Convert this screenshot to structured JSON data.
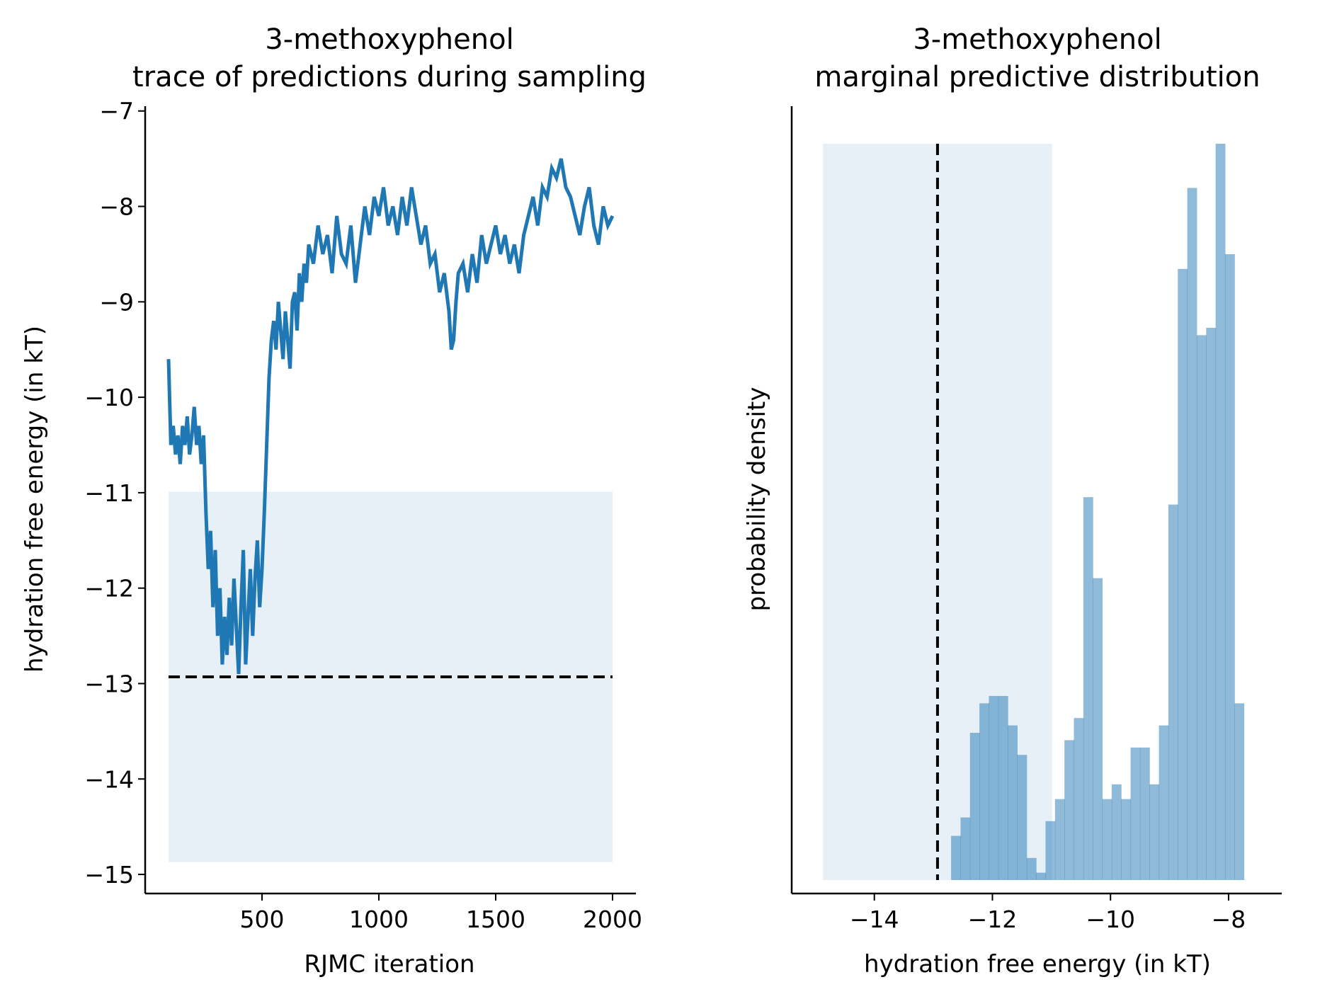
{
  "chart_data": [
    {
      "type": "line",
      "title_line1": "3-methoxyphenol",
      "title_line2": "trace of predictions during sampling",
      "xlabel": "RJMC iteration",
      "ylabel": "hydration free energy (in kT)",
      "xlim": [
        0,
        2100
      ],
      "ylim": [
        -15.2,
        -6.95
      ],
      "xticks": [
        500,
        1000,
        1500,
        2000
      ],
      "yticks": [
        -15,
        -14,
        -13,
        -12,
        -11,
        -10,
        -9,
        -8,
        -7
      ],
      "band": {
        "x0": 100,
        "x1": 2000,
        "y0": -14.87,
        "y1": -10.99
      },
      "reference_line": {
        "y": -12.93,
        "x0": 100,
        "x1": 2000
      },
      "series": [
        {
          "x": [
            100,
            110,
            120,
            130,
            140,
            150,
            160,
            170,
            180,
            190,
            200,
            210,
            220,
            230,
            240,
            250,
            260,
            270,
            280,
            290,
            300,
            310,
            320,
            330,
            340,
            350,
            360,
            370,
            380,
            390,
            400,
            410,
            420,
            430,
            440,
            450,
            460,
            470,
            480,
            490,
            500,
            510,
            520,
            530,
            540,
            550,
            560,
            570,
            580,
            590,
            600,
            610,
            620,
            630,
            640,
            650,
            660,
            670,
            680,
            690,
            700,
            720,
            740,
            760,
            780,
            800,
            820,
            840,
            860,
            880,
            900,
            920,
            940,
            960,
            980,
            1000,
            1020,
            1040,
            1060,
            1080,
            1100,
            1120,
            1140,
            1160,
            1180,
            1200,
            1220,
            1240,
            1260,
            1280,
            1300,
            1310,
            1320,
            1330,
            1340,
            1360,
            1380,
            1400,
            1420,
            1440,
            1460,
            1480,
            1500,
            1520,
            1540,
            1560,
            1580,
            1600,
            1620,
            1640,
            1660,
            1680,
            1700,
            1720,
            1740,
            1760,
            1780,
            1800,
            1820,
            1840,
            1860,
            1880,
            1900,
            1920,
            1940,
            1960,
            1980,
            2000
          ],
          "y": [
            -9.6,
            -10.5,
            -10.3,
            -10.6,
            -10.4,
            -10.7,
            -10.3,
            -10.5,
            -10.2,
            -10.6,
            -10.4,
            -10.1,
            -10.5,
            -10.3,
            -10.7,
            -10.4,
            -11.2,
            -11.8,
            -11.4,
            -12.2,
            -11.6,
            -12.5,
            -12.0,
            -12.8,
            -12.3,
            -12.7,
            -12.1,
            -12.6,
            -11.9,
            -12.4,
            -12.9,
            -12.2,
            -11.6,
            -12.8,
            -12.3,
            -11.8,
            -12.5,
            -11.9,
            -11.5,
            -12.2,
            -11.8,
            -11.2,
            -10.5,
            -9.8,
            -9.4,
            -9.2,
            -9.5,
            -9.0,
            -9.3,
            -9.6,
            -9.1,
            -9.4,
            -9.7,
            -9.0,
            -8.9,
            -9.3,
            -8.7,
            -9.0,
            -8.6,
            -8.8,
            -8.4,
            -8.6,
            -8.2,
            -8.5,
            -8.3,
            -8.7,
            -8.1,
            -8.5,
            -8.6,
            -8.2,
            -8.8,
            -8.4,
            -8.0,
            -8.3,
            -7.9,
            -8.1,
            -7.8,
            -8.2,
            -8.0,
            -8.3,
            -7.9,
            -8.2,
            -7.8,
            -8.1,
            -8.4,
            -8.2,
            -8.6,
            -8.5,
            -8.9,
            -8.7,
            -9.1,
            -9.5,
            -9.4,
            -9.0,
            -8.7,
            -8.6,
            -8.9,
            -8.5,
            -8.8,
            -8.3,
            -8.6,
            -8.4,
            -8.2,
            -8.5,
            -8.3,
            -8.6,
            -8.4,
            -8.7,
            -8.3,
            -8.1,
            -7.9,
            -8.2,
            -7.8,
            -7.9,
            -7.6,
            -7.7,
            -7.5,
            -7.8,
            -7.9,
            -8.1,
            -8.3,
            -8.0,
            -7.8,
            -8.2,
            -8.4,
            -8.0,
            -8.2,
            -8.1
          ]
        }
      ]
    },
    {
      "type": "bar",
      "title_line1": "3-methoxyphenol",
      "title_line2": "marginal predictive distribution",
      "xlabel": "hydration free energy (in kT)",
      "ylabel": "probability density",
      "xlim": [
        -15.4,
        -7.1
      ],
      "xticks": [
        -14,
        -12,
        -10,
        -8
      ],
      "band": {
        "x0": -14.87,
        "x1": -10.99
      },
      "reference_line": {
        "x": -12.93
      },
      "bin_edges": [
        -12.7,
        -12.54,
        -12.38,
        -12.22,
        -12.06,
        -11.9,
        -11.74,
        -11.58,
        -11.42,
        -11.26,
        -11.1,
        -10.94,
        -10.78,
        -10.62,
        -10.46,
        -10.3,
        -10.14,
        -9.98,
        -9.82,
        -9.66,
        -9.5,
        -9.34,
        -9.18,
        -9.02,
        -8.86,
        -8.7,
        -8.54,
        -8.38,
        -8.22,
        -8.06,
        -7.9,
        -7.74,
        -7.58
      ],
      "values": [
        0.06,
        0.085,
        0.2,
        0.24,
        0.25,
        0.25,
        0.21,
        0.17,
        0.03,
        0.01,
        0.08,
        0.11,
        0.19,
        0.22,
        0.52,
        0.41,
        0.11,
        0.13,
        0.11,
        0.18,
        0.18,
        0.13,
        0.21,
        0.51,
        0.83,
        0.94,
        0.74,
        0.75,
        1.0,
        0.85,
        0.24,
        0.0
      ]
    }
  ]
}
